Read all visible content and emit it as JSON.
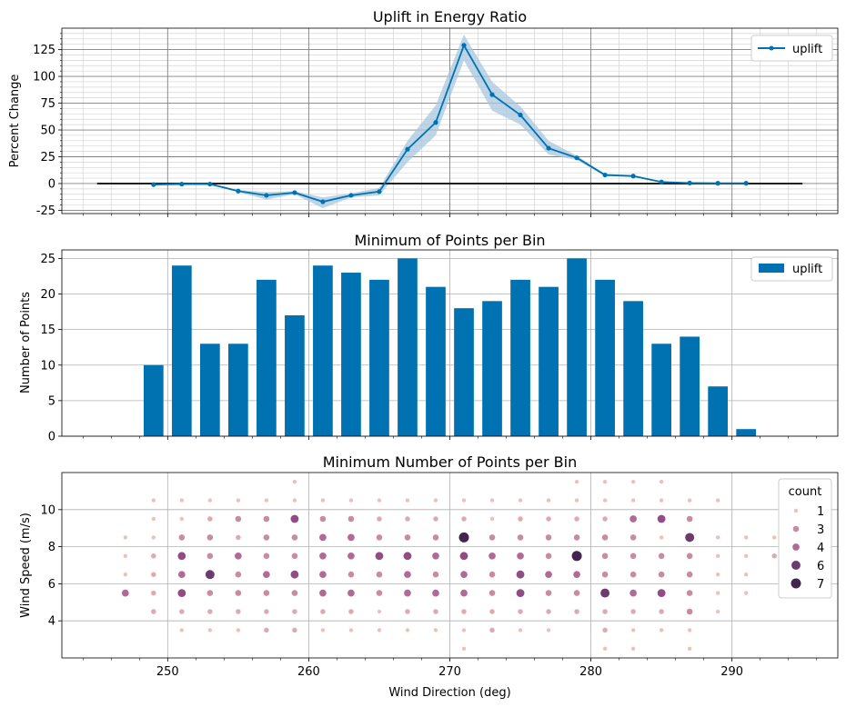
{
  "chart_data": [
    {
      "type": "line",
      "title": "Uplift in Energy Ratio",
      "xlabel": "",
      "ylabel": "Percent Change",
      "xlim": [
        242.5,
        297.5
      ],
      "ylim": [
        -28,
        145
      ],
      "yticks": [
        -25,
        0,
        25,
        50,
        75,
        100,
        125
      ],
      "grid": true,
      "legend": {
        "position": "upper right",
        "entries": [
          "uplift"
        ]
      },
      "colors": {
        "series": "#0072b2",
        "band": "#a7c7de",
        "baseline": "#000000",
        "major_grid": "#808080",
        "minor_grid": "#d3d3d3"
      },
      "baseline": {
        "y": 0,
        "x": [
          245,
          295
        ]
      },
      "series": [
        {
          "name": "uplift",
          "x": [
            249,
            251,
            253,
            255,
            257,
            259,
            261,
            263,
            265,
            267,
            269,
            271,
            273,
            275,
            277,
            279,
            281,
            283,
            285,
            287,
            289,
            291
          ],
          "y": [
            -1,
            -0.5,
            -0.5,
            -7,
            -11,
            -8.5,
            -17,
            -11,
            -7.5,
            32,
            57,
            129,
            83,
            64,
            33,
            24,
            8,
            7,
            1.5,
            0.5,
            0.3,
            0.3
          ],
          "lower": [
            -1.5,
            -1,
            -1,
            -8,
            -15,
            -10,
            -23,
            -13,
            -11,
            20,
            45,
            115,
            68,
            55,
            27,
            22,
            7,
            6,
            1,
            0.3,
            0.2,
            0.2
          ],
          "upper": [
            -0.5,
            0,
            0,
            -6,
            -8,
            -7,
            -13,
            -9,
            -4,
            40,
            73,
            139,
            95,
            72,
            40,
            26,
            9,
            8,
            2,
            0.7,
            0.4,
            0.4
          ]
        }
      ]
    },
    {
      "type": "bar",
      "title": "Minimum of Points per Bin",
      "xlabel": "",
      "ylabel": "Number of Points",
      "xlim": [
        242.5,
        297.5
      ],
      "ylim": [
        0,
        26.2
      ],
      "yticks": [
        0,
        5,
        10,
        15,
        20,
        25
      ],
      "grid": true,
      "legend": {
        "position": "upper right",
        "entries": [
          "uplift"
        ]
      },
      "colors": {
        "bar": "#0072b2",
        "grid": "#b0b0b0"
      },
      "bar_width_deg": 1.4,
      "series": [
        {
          "name": "uplift",
          "x": [
            249,
            251,
            253,
            255,
            257,
            259,
            261,
            263,
            265,
            267,
            269,
            271,
            273,
            275,
            277,
            279,
            281,
            283,
            285,
            287,
            289,
            291
          ],
          "values": [
            10,
            24,
            13,
            13,
            22,
            17,
            24,
            23,
            22,
            25,
            21,
            18,
            19,
            22,
            21,
            25,
            22,
            19,
            13,
            14,
            7,
            1
          ]
        }
      ]
    },
    {
      "type": "scatter",
      "title": "Minimum Number of Points per Bin",
      "xlabel": "Wind Direction (deg)",
      "ylabel": "Wind Speed (m/s)",
      "xlim": [
        242.5,
        297.5
      ],
      "ylim": [
        2,
        12
      ],
      "xticks": [
        250,
        260,
        270,
        280,
        290
      ],
      "yticks": [
        4,
        6,
        8,
        10
      ],
      "grid": true,
      "legend": {
        "title": "count",
        "position": "upper right",
        "entries": [
          {
            "label": "1",
            "value": 1
          },
          {
            "label": "3",
            "value": 3
          },
          {
            "label": "4",
            "value": 4
          },
          {
            "label": "6",
            "value": 6
          },
          {
            "label": "7",
            "value": 7
          }
        ]
      },
      "colors": {
        "c1": "#ecc1b8",
        "c2": "#dcaab0",
        "c3": "#c98aa3",
        "c4": "#b06a95",
        "c5": "#8f4d84",
        "c6": "#6b3a6e",
        "c7": "#42244f",
        "grid": "#b0b0b0"
      },
      "points": [
        {
          "x": 247,
          "y": 8.5,
          "c": 1
        },
        {
          "x": 247,
          "y": 7.5,
          "c": 1
        },
        {
          "x": 247,
          "y": 6.5,
          "c": 1
        },
        {
          "x": 247,
          "y": 5.5,
          "c": 4
        },
        {
          "x": 249,
          "y": 10.5,
          "c": 1
        },
        {
          "x": 249,
          "y": 9.5,
          "c": 1
        },
        {
          "x": 249,
          "y": 8.5,
          "c": 1
        },
        {
          "x": 249,
          "y": 7.5,
          "c": 2
        },
        {
          "x": 249,
          "y": 6.5,
          "c": 2
        },
        {
          "x": 249,
          "y": 5.5,
          "c": 2
        },
        {
          "x": 249,
          "y": 4.5,
          "c": 2
        },
        {
          "x": 251,
          "y": 10.5,
          "c": 1
        },
        {
          "x": 251,
          "y": 9.5,
          "c": 1
        },
        {
          "x": 251,
          "y": 8.5,
          "c": 3
        },
        {
          "x": 251,
          "y": 7.5,
          "c": 5
        },
        {
          "x": 251,
          "y": 6.5,
          "c": 4
        },
        {
          "x": 251,
          "y": 5.5,
          "c": 5
        },
        {
          "x": 251,
          "y": 4.5,
          "c": 2
        },
        {
          "x": 251,
          "y": 3.5,
          "c": 1
        },
        {
          "x": 253,
          "y": 10.5,
          "c": 1
        },
        {
          "x": 253,
          "y": 9.5,
          "c": 2
        },
        {
          "x": 253,
          "y": 8.5,
          "c": 3
        },
        {
          "x": 253,
          "y": 7.5,
          "c": 3
        },
        {
          "x": 253,
          "y": 6.5,
          "c": 6
        },
        {
          "x": 253,
          "y": 5.5,
          "c": 3
        },
        {
          "x": 253,
          "y": 4.5,
          "c": 2
        },
        {
          "x": 253,
          "y": 3.5,
          "c": 1
        },
        {
          "x": 255,
          "y": 10.5,
          "c": 1
        },
        {
          "x": 255,
          "y": 9.5,
          "c": 3
        },
        {
          "x": 255,
          "y": 8.5,
          "c": 2
        },
        {
          "x": 255,
          "y": 7.5,
          "c": 4
        },
        {
          "x": 255,
          "y": 6.5,
          "c": 3
        },
        {
          "x": 255,
          "y": 5.5,
          "c": 3
        },
        {
          "x": 255,
          "y": 4.5,
          "c": 2
        },
        {
          "x": 255,
          "y": 3.5,
          "c": 1
        },
        {
          "x": 257,
          "y": 10.5,
          "c": 1
        },
        {
          "x": 257,
          "y": 9.5,
          "c": 3
        },
        {
          "x": 257,
          "y": 8.5,
          "c": 3
        },
        {
          "x": 257,
          "y": 7.5,
          "c": 3
        },
        {
          "x": 257,
          "y": 6.5,
          "c": 4
        },
        {
          "x": 257,
          "y": 5.5,
          "c": 3
        },
        {
          "x": 257,
          "y": 4.5,
          "c": 2
        },
        {
          "x": 257,
          "y": 3.5,
          "c": 2
        },
        {
          "x": 259,
          "y": 11.5,
          "c": 1
        },
        {
          "x": 259,
          "y": 10.5,
          "c": 1
        },
        {
          "x": 259,
          "y": 9.5,
          "c": 5
        },
        {
          "x": 259,
          "y": 8.5,
          "c": 3
        },
        {
          "x": 259,
          "y": 7.5,
          "c": 3
        },
        {
          "x": 259,
          "y": 6.5,
          "c": 5
        },
        {
          "x": 259,
          "y": 5.5,
          "c": 3
        },
        {
          "x": 259,
          "y": 4.5,
          "c": 2
        },
        {
          "x": 259,
          "y": 3.5,
          "c": 2
        },
        {
          "x": 261,
          "y": 10.5,
          "c": 1
        },
        {
          "x": 261,
          "y": 9.5,
          "c": 3
        },
        {
          "x": 261,
          "y": 8.5,
          "c": 4
        },
        {
          "x": 261,
          "y": 7.5,
          "c": 4
        },
        {
          "x": 261,
          "y": 6.5,
          "c": 4
        },
        {
          "x": 261,
          "y": 5.5,
          "c": 4
        },
        {
          "x": 261,
          "y": 4.5,
          "c": 2
        },
        {
          "x": 261,
          "y": 3.5,
          "c": 1
        },
        {
          "x": 263,
          "y": 10.5,
          "c": 1
        },
        {
          "x": 263,
          "y": 9.5,
          "c": 3
        },
        {
          "x": 263,
          "y": 8.5,
          "c": 4
        },
        {
          "x": 263,
          "y": 7.5,
          "c": 4
        },
        {
          "x": 263,
          "y": 6.5,
          "c": 3
        },
        {
          "x": 263,
          "y": 5.5,
          "c": 4
        },
        {
          "x": 263,
          "y": 4.5,
          "c": 2
        },
        {
          "x": 263,
          "y": 3.5,
          "c": 1
        },
        {
          "x": 265,
          "y": 10.5,
          "c": 1
        },
        {
          "x": 265,
          "y": 9.5,
          "c": 2
        },
        {
          "x": 265,
          "y": 8.5,
          "c": 3
        },
        {
          "x": 265,
          "y": 7.5,
          "c": 5
        },
        {
          "x": 265,
          "y": 6.5,
          "c": 3
        },
        {
          "x": 265,
          "y": 5.5,
          "c": 3
        },
        {
          "x": 265,
          "y": 4.5,
          "c": 1
        },
        {
          "x": 265,
          "y": 3.5,
          "c": 1
        },
        {
          "x": 267,
          "y": 10.5,
          "c": 1
        },
        {
          "x": 267,
          "y": 9.5,
          "c": 2
        },
        {
          "x": 267,
          "y": 8.5,
          "c": 3
        },
        {
          "x": 267,
          "y": 7.5,
          "c": 5
        },
        {
          "x": 267,
          "y": 6.5,
          "c": 4
        },
        {
          "x": 267,
          "y": 5.5,
          "c": 4
        },
        {
          "x": 267,
          "y": 4.5,
          "c": 2
        },
        {
          "x": 267,
          "y": 3.5,
          "c": 1
        },
        {
          "x": 269,
          "y": 10.5,
          "c": 1
        },
        {
          "x": 269,
          "y": 9.5,
          "c": 2
        },
        {
          "x": 269,
          "y": 8.5,
          "c": 3
        },
        {
          "x": 269,
          "y": 7.5,
          "c": 4
        },
        {
          "x": 269,
          "y": 6.5,
          "c": 3
        },
        {
          "x": 269,
          "y": 5.5,
          "c": 4
        },
        {
          "x": 269,
          "y": 4.5,
          "c": 2
        },
        {
          "x": 269,
          "y": 3.5,
          "c": 1
        },
        {
          "x": 271,
          "y": 10.5,
          "c": 1
        },
        {
          "x": 271,
          "y": 9.5,
          "c": 2
        },
        {
          "x": 271,
          "y": 8.5,
          "c": 7
        },
        {
          "x": 271,
          "y": 7.5,
          "c": 5
        },
        {
          "x": 271,
          "y": 6.5,
          "c": 4
        },
        {
          "x": 271,
          "y": 5.5,
          "c": 4
        },
        {
          "x": 271,
          "y": 4.5,
          "c": 2
        },
        {
          "x": 271,
          "y": 3.5,
          "c": 1
        },
        {
          "x": 271,
          "y": 2.5,
          "c": 1
        },
        {
          "x": 273,
          "y": 10.5,
          "c": 1
        },
        {
          "x": 273,
          "y": 9.5,
          "c": 1
        },
        {
          "x": 273,
          "y": 8.5,
          "c": 3
        },
        {
          "x": 273,
          "y": 7.5,
          "c": 4
        },
        {
          "x": 273,
          "y": 6.5,
          "c": 3
        },
        {
          "x": 273,
          "y": 5.5,
          "c": 3
        },
        {
          "x": 273,
          "y": 4.5,
          "c": 2
        },
        {
          "x": 273,
          "y": 3.5,
          "c": 2
        },
        {
          "x": 275,
          "y": 10.5,
          "c": 1
        },
        {
          "x": 275,
          "y": 9.5,
          "c": 2
        },
        {
          "x": 275,
          "y": 8.5,
          "c": 3
        },
        {
          "x": 275,
          "y": 7.5,
          "c": 4
        },
        {
          "x": 275,
          "y": 6.5,
          "c": 5
        },
        {
          "x": 275,
          "y": 5.5,
          "c": 5
        },
        {
          "x": 275,
          "y": 4.5,
          "c": 2
        },
        {
          "x": 275,
          "y": 3.5,
          "c": 1
        },
        {
          "x": 277,
          "y": 10.5,
          "c": 1
        },
        {
          "x": 277,
          "y": 9.5,
          "c": 2
        },
        {
          "x": 277,
          "y": 8.5,
          "c": 3
        },
        {
          "x": 277,
          "y": 7.5,
          "c": 3
        },
        {
          "x": 277,
          "y": 6.5,
          "c": 4
        },
        {
          "x": 277,
          "y": 5.5,
          "c": 3
        },
        {
          "x": 277,
          "y": 4.5,
          "c": 2
        },
        {
          "x": 277,
          "y": 3.5,
          "c": 1
        },
        {
          "x": 279,
          "y": 11.5,
          "c": 1
        },
        {
          "x": 279,
          "y": 10.5,
          "c": 1
        },
        {
          "x": 279,
          "y": 9.5,
          "c": 2
        },
        {
          "x": 279,
          "y": 8.5,
          "c": 3
        },
        {
          "x": 279,
          "y": 7.5,
          "c": 7
        },
        {
          "x": 279,
          "y": 6.5,
          "c": 4
        },
        {
          "x": 279,
          "y": 5.5,
          "c": 3
        },
        {
          "x": 279,
          "y": 4.5,
          "c": 2
        },
        {
          "x": 281,
          "y": 11.5,
          "c": 1
        },
        {
          "x": 281,
          "y": 10.5,
          "c": 1
        },
        {
          "x": 281,
          "y": 9.5,
          "c": 2
        },
        {
          "x": 281,
          "y": 8.5,
          "c": 3
        },
        {
          "x": 281,
          "y": 7.5,
          "c": 3
        },
        {
          "x": 281,
          "y": 6.5,
          "c": 3
        },
        {
          "x": 281,
          "y": 5.5,
          "c": 6
        },
        {
          "x": 281,
          "y": 4.5,
          "c": 2
        },
        {
          "x": 281,
          "y": 3.5,
          "c": 2
        },
        {
          "x": 281,
          "y": 2.5,
          "c": 1
        },
        {
          "x": 283,
          "y": 11.5,
          "c": 1
        },
        {
          "x": 283,
          "y": 10.5,
          "c": 1
        },
        {
          "x": 283,
          "y": 9.5,
          "c": 4
        },
        {
          "x": 283,
          "y": 8.5,
          "c": 3
        },
        {
          "x": 283,
          "y": 7.5,
          "c": 3
        },
        {
          "x": 283,
          "y": 6.5,
          "c": 3
        },
        {
          "x": 283,
          "y": 5.5,
          "c": 4
        },
        {
          "x": 283,
          "y": 4.5,
          "c": 2
        },
        {
          "x": 283,
          "y": 3.5,
          "c": 1
        },
        {
          "x": 283,
          "y": 2.5,
          "c": 1
        },
        {
          "x": 285,
          "y": 11.5,
          "c": 1
        },
        {
          "x": 285,
          "y": 10.5,
          "c": 1
        },
        {
          "x": 285,
          "y": 9.5,
          "c": 5
        },
        {
          "x": 285,
          "y": 8.5,
          "c": 1
        },
        {
          "x": 285,
          "y": 7.5,
          "c": 3
        },
        {
          "x": 285,
          "y": 6.5,
          "c": 3
        },
        {
          "x": 285,
          "y": 5.5,
          "c": 5
        },
        {
          "x": 285,
          "y": 4.5,
          "c": 2
        },
        {
          "x": 285,
          "y": 3.5,
          "c": 1
        },
        {
          "x": 287,
          "y": 10.5,
          "c": 1
        },
        {
          "x": 287,
          "y": 9.5,
          "c": 3
        },
        {
          "x": 287,
          "y": 8.5,
          "c": 6
        },
        {
          "x": 287,
          "y": 7.5,
          "c": 3
        },
        {
          "x": 287,
          "y": 6.5,
          "c": 3
        },
        {
          "x": 287,
          "y": 5.5,
          "c": 3
        },
        {
          "x": 287,
          "y": 4.5,
          "c": 3
        },
        {
          "x": 287,
          "y": 3.5,
          "c": 1
        },
        {
          "x": 287,
          "y": 2.5,
          "c": 1
        },
        {
          "x": 289,
          "y": 10.5,
          "c": 1
        },
        {
          "x": 289,
          "y": 8.5,
          "c": 1
        },
        {
          "x": 289,
          "y": 7.5,
          "c": 1
        },
        {
          "x": 289,
          "y": 6.5,
          "c": 1
        },
        {
          "x": 289,
          "y": 5.5,
          "c": 1
        },
        {
          "x": 289,
          "y": 4.5,
          "c": 1
        },
        {
          "x": 291,
          "y": 8.5,
          "c": 1
        },
        {
          "x": 291,
          "y": 7.5,
          "c": 1
        },
        {
          "x": 291,
          "y": 6.5,
          "c": 1
        },
        {
          "x": 291,
          "y": 5.5,
          "c": 1
        },
        {
          "x": 293,
          "y": 8.5,
          "c": 1
        },
        {
          "x": 293,
          "y": 7.5,
          "c": 2
        }
      ]
    }
  ]
}
